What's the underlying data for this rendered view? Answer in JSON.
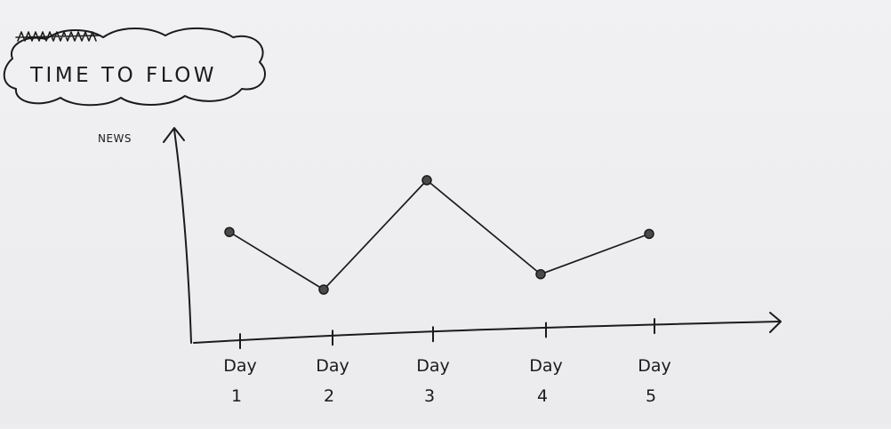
{
  "chart_data": {
    "type": "line",
    "title": "TIME TO FLOW",
    "ylabel": "NEWS",
    "xlabel": "",
    "categories": [
      "Day 1",
      "Day 2",
      "Day 3",
      "Day 4",
      "Day 5"
    ],
    "category_parts": [
      {
        "word": "Day",
        "num": "1"
      },
      {
        "word": "Day",
        "num": "2"
      },
      {
        "word": "Day",
        "num": "3"
      },
      {
        "word": "Day",
        "num": "4"
      },
      {
        "word": "Day",
        "num": "5"
      }
    ],
    "series": [
      {
        "values": [
          5.5,
          2.5,
          8.2,
          3.3,
          5.4
        ]
      }
    ],
    "ylim": [
      0,
      10
    ],
    "grid": false,
    "style": "hand-drawn sketch",
    "ink_color": "#1b1b1b",
    "paper_color": "#eeeef0"
  }
}
